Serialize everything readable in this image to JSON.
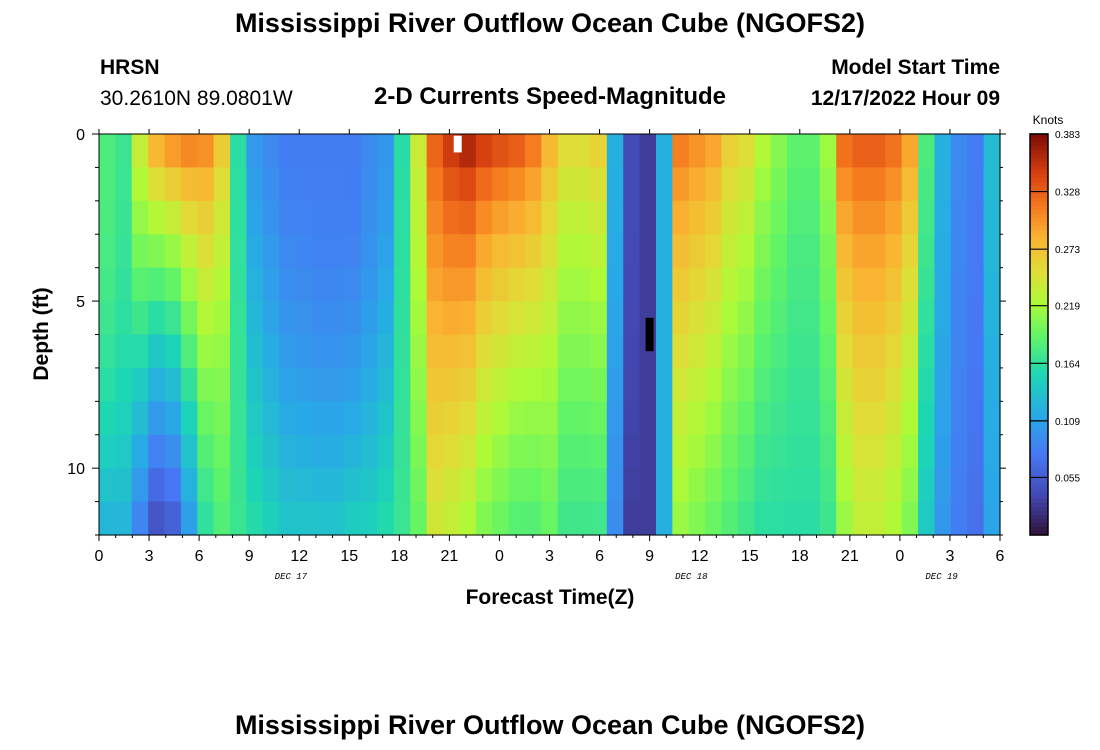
{
  "header": {
    "title": "Mississippi River Outflow Ocean Cube (NGOFS2)",
    "station_name": "HRSN",
    "station_coords": "30.2610N  89.0801W",
    "plot_name": "2-D Currents Speed-Magnitude",
    "model_start_label": "Model Start Time",
    "model_start_value": "12/17/2022 Hour 09"
  },
  "footer": {
    "title": "Mississippi River Outflow Ocean Cube (NGOFS2)"
  },
  "chart_data": {
    "type": "heatmap",
    "title": "2-D Currents Speed-Magnitude",
    "xlabel": "Forecast Time(Z)",
    "ylabel": "Depth (ft)",
    "x_tick_labels": [
      "0",
      "3",
      "6",
      "9",
      "12",
      "15",
      "18",
      "21",
      "0",
      "3",
      "6",
      "9",
      "12",
      "15",
      "18",
      "21",
      "0",
      "3",
      "6"
    ],
    "x_range_hours": [
      0,
      54
    ],
    "date_labels": [
      {
        "text": "DEC 17",
        "hour": 11.5
      },
      {
        "text": "DEC 18",
        "hour": 35.5
      },
      {
        "text": "DEC 19",
        "hour": 50.5
      }
    ],
    "y_range_ft": [
      0,
      12
    ],
    "y_tick_labels": [
      {
        "label": "0",
        "value": 0
      },
      {
        "label": "5",
        "value": 5
      },
      {
        "label": "10",
        "value": 10
      }
    ],
    "colorbar": {
      "unit": "Knots",
      "min": 0.0,
      "max": 0.383,
      "tick_labels": [
        "0.383",
        "0.328",
        "0.273",
        "0.219",
        "0.164",
        "0.109",
        "0.055"
      ],
      "tick_values": [
        0.383,
        0.328,
        0.273,
        0.219,
        0.164,
        0.109,
        0.055
      ]
    },
    "time_columns": 55,
    "depth_levels": 12,
    "pattern_notes": "Speed (knots) by forecast hour and depth; high-speed bands around hours 2-7, 19-27, 35-43 and 44-49; low-speed bands around hours 8-17, 31-33 and 50-54.",
    "surface_profile_knots": [
      0.18,
      0.17,
      0.24,
      0.3,
      0.32,
      0.33,
      0.32,
      0.28,
      0.16,
      0.1,
      0.09,
      0.08,
      0.08,
      0.08,
      0.08,
      0.08,
      0.09,
      0.1,
      0.16,
      0.24,
      0.33,
      0.36,
      0.38,
      0.37,
      0.36,
      0.35,
      0.33,
      0.29,
      0.26,
      0.26,
      0.27,
      0.12,
      0.04,
      0.03,
      0.12,
      0.32,
      0.31,
      0.3,
      0.27,
      0.26,
      0.23,
      0.21,
      0.19,
      0.19,
      0.22,
      0.33,
      0.34,
      0.34,
      0.33,
      0.3,
      0.18,
      0.12,
      0.09,
      0.08,
      0.13
    ],
    "deep_profile_knots": [
      0.12,
      0.12,
      0.08,
      0.04,
      0.05,
      0.1,
      0.16,
      0.18,
      0.17,
      0.16,
      0.15,
      0.14,
      0.14,
      0.14,
      0.14,
      0.15,
      0.15,
      0.16,
      0.17,
      0.19,
      0.24,
      0.23,
      0.22,
      0.2,
      0.19,
      0.18,
      0.18,
      0.19,
      0.17,
      0.17,
      0.17,
      0.09,
      0.03,
      0.03,
      0.12,
      0.21,
      0.2,
      0.19,
      0.18,
      0.17,
      0.16,
      0.16,
      0.16,
      0.16,
      0.17,
      0.21,
      0.23,
      0.23,
      0.22,
      0.2,
      0.14,
      0.1,
      0.08,
      0.07,
      0.11
    ],
    "shape_profile": [
      0.25,
      0.25,
      0.55,
      0.75,
      0.8,
      0.85,
      0.9,
      1.0,
      0.9,
      0.55,
      0.45,
      0.4,
      0.35,
      0.3,
      0.3,
      0.3,
      0.35,
      0.4,
      0.5,
      0.6,
      0.7,
      0.8,
      0.9,
      1.0,
      1.0,
      0.95,
      0.9,
      0.85,
      0.8,
      0.8,
      0.8,
      0.4,
      0.3,
      0.3,
      0.4,
      0.8,
      0.8,
      0.8,
      0.8,
      0.8,
      0.8,
      0.8,
      0.8,
      0.8,
      0.8,
      0.85,
      0.9,
      0.9,
      0.9,
      0.85,
      0.5,
      0.4,
      0.4,
      0.4,
      0.5
    ],
    "markers": [
      {
        "hour": 21.5,
        "depth_from": 0.05,
        "depth_to": 0.55,
        "color": "#ffffff"
      },
      {
        "hour": 33.0,
        "depth_from": 5.5,
        "depth_to": 6.5,
        "color": "#000000"
      }
    ]
  }
}
